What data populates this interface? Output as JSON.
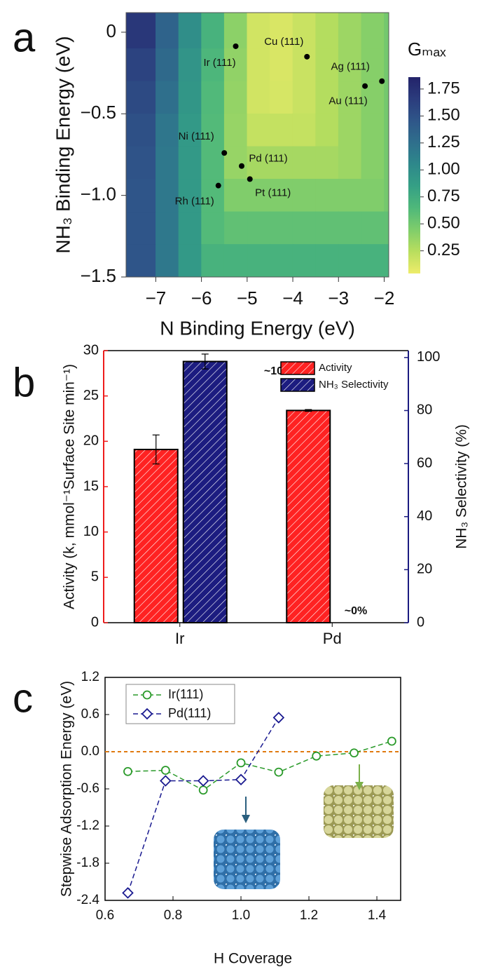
{
  "chart_data": [
    {
      "type": "heatmap",
      "panel_label": "a",
      "xlabel": "N Binding Energy (eV)",
      "ylabel": "NH₃ Binding Energy (eV)",
      "xlim": [
        -7.65,
        -1.9
      ],
      "ylim": [
        -1.5,
        0.12
      ],
      "xticks": [
        {
          "value": -7,
          "label": "−7"
        },
        {
          "value": -6,
          "label": "−6"
        },
        {
          "value": -5,
          "label": "−5"
        },
        {
          "value": -4,
          "label": "−4"
        },
        {
          "value": -3,
          "label": "−3"
        },
        {
          "value": -2,
          "label": "−2"
        }
      ],
      "yticks": [
        0,
        {
          "value": -0.5,
          "label": "−0.5"
        },
        {
          "value": -1,
          "label": "−1.0"
        },
        {
          "value": -1.5,
          "label": "−1.5"
        }
      ],
      "x_edges": [
        -7.65,
        -7,
        -6.5,
        -6,
        -5.5,
        -5,
        -4.5,
        -4,
        -3.5,
        -3,
        -2.5,
        -2,
        -1.9
      ],
      "y_edges": [
        0.12,
        -0.1,
        -0.3,
        -0.5,
        -0.7,
        -0.9,
        -1.1,
        -1.3,
        -1.5
      ],
      "z": [
        [
          1.7,
          1.35,
          1.0,
          0.7,
          0.4,
          0.15,
          0.12,
          0.18,
          0.26,
          0.34,
          0.42,
          0.49
        ],
        [
          1.6,
          1.3,
          0.95,
          0.66,
          0.38,
          0.15,
          0.12,
          0.18,
          0.26,
          0.34,
          0.42,
          0.49
        ],
        [
          1.55,
          1.25,
          0.93,
          0.64,
          0.37,
          0.15,
          0.13,
          0.18,
          0.26,
          0.34,
          0.42,
          0.49
        ],
        [
          1.5,
          1.2,
          0.91,
          0.63,
          0.36,
          0.2,
          0.2,
          0.2,
          0.26,
          0.34,
          0.42,
          0.49
        ],
        [
          1.48,
          1.18,
          0.91,
          0.63,
          0.36,
          0.31,
          0.31,
          0.31,
          0.31,
          0.34,
          0.42,
          0.49
        ],
        [
          1.46,
          1.18,
          0.91,
          0.63,
          0.44,
          0.44,
          0.44,
          0.44,
          0.44,
          0.44,
          0.44,
          0.49
        ],
        [
          1.46,
          1.18,
          0.91,
          0.63,
          0.57,
          0.57,
          0.57,
          0.57,
          0.57,
          0.57,
          0.57,
          0.57
        ],
        [
          1.46,
          1.18,
          0.91,
          0.7,
          0.7,
          0.7,
          0.7,
          0.7,
          0.7,
          0.7,
          0.7,
          0.7
        ]
      ],
      "zlim": [
        0.04,
        1.86
      ],
      "colormap": [
        "#eeec6a",
        "#b9de5e",
        "#7fcd6b",
        "#4fb87a",
        "#35a085",
        "#2e888b",
        "#2f6f8c",
        "#2f5689",
        "#2b3c7d",
        "#23236a"
      ],
      "colorbar_label": "Gₘₐₓ",
      "colorbar_ticks": [
        0.25,
        {
          "value": 0.5,
          "label": "0.50"
        },
        0.75,
        {
          "value": 1,
          "label": "1.00"
        },
        1.25,
        {
          "value": 1.5,
          "label": "1.50"
        },
        1.75
      ],
      "points": {
        "labels": [
          "Ir (111)",
          "Cu (111)",
          "Ag (111)",
          "Au (111)",
          "Ni (111)",
          "Pd (111)",
          "Pt (111)",
          "Rh (111)"
        ],
        "x": [
          -5.25,
          -3.69,
          -2.05,
          -2.42,
          -5.5,
          -5.12,
          -4.94,
          -5.63
        ],
        "y": [
          -0.086,
          -0.15,
          -0.3,
          -0.33,
          -0.74,
          -0.82,
          -0.9,
          -0.94
        ],
        "color": "#000000"
      }
    },
    {
      "type": "bar",
      "panel_label": "b",
      "categories": [
        "Ir",
        "Pd"
      ],
      "ylabel": "Activity (k, mmol⁻¹Surface Site min⁻¹)",
      "y2label": "NH₃ Selectivity (%)",
      "ylim": [
        0,
        30
      ],
      "yticks": [
        0,
        5,
        10,
        15,
        20,
        25,
        30
      ],
      "y2lim": [
        0,
        102.6
      ],
      "y2ticks": [
        0,
        20,
        40,
        60,
        80,
        100
      ],
      "ycolor": "#ee1c1c",
      "y2color": "#1a1a80",
      "series": [
        {
          "name": "Activity",
          "color": "#ff2222",
          "values": [
            19.1,
            23.4
          ],
          "errors": [
            1.6,
            0.1
          ]
        },
        {
          "name": "NH₃ Selectivity",
          "color": "#1c1c80",
          "axis": "y2",
          "values": [
            98.5,
            0
          ],
          "errors": [
            2.8,
            null
          ]
        }
      ],
      "annotations": [
        "~100%",
        "~0%"
      ],
      "legend": "upper right"
    },
    {
      "type": "line",
      "panel_label": "c",
      "xlabel": "H Coverage",
      "ylabel": "Stepwise Adsorption Energy (eV)",
      "xlim": [
        0.6,
        1.47
      ],
      "xticks": [
        0.6,
        0.8,
        {
          "value": 1,
          "label": "1.0"
        },
        1.2,
        1.4
      ],
      "ylim": [
        -2.4,
        1.2
      ],
      "yticks": [
        1.2,
        0.6,
        {
          "value": 0,
          "label": "0.0"
        },
        -0.6,
        -1.2,
        -1.8,
        -2.4
      ],
      "hline": 0,
      "hline_color": "#e07a10",
      "series": [
        {
          "name": "Ir(111)",
          "color": "#2a9a2a",
          "marker": "circle",
          "x": [
            0.667,
            0.778,
            0.889,
            1.0,
            1.111,
            1.222,
            1.333,
            1.444
          ],
          "values": [
            -0.32,
            -0.3,
            -0.62,
            -0.18,
            -0.33,
            -0.07,
            -0.02,
            0.17
          ]
        },
        {
          "name": "Pd(111)",
          "color": "#1a1a90",
          "marker": "diamond",
          "x": [
            0.667,
            0.778,
            0.889,
            1.0,
            1.111
          ],
          "values": [
            -2.28,
            -0.47,
            -0.47,
            -0.45,
            0.55
          ]
        }
      ],
      "legend": "upper left"
    }
  ]
}
